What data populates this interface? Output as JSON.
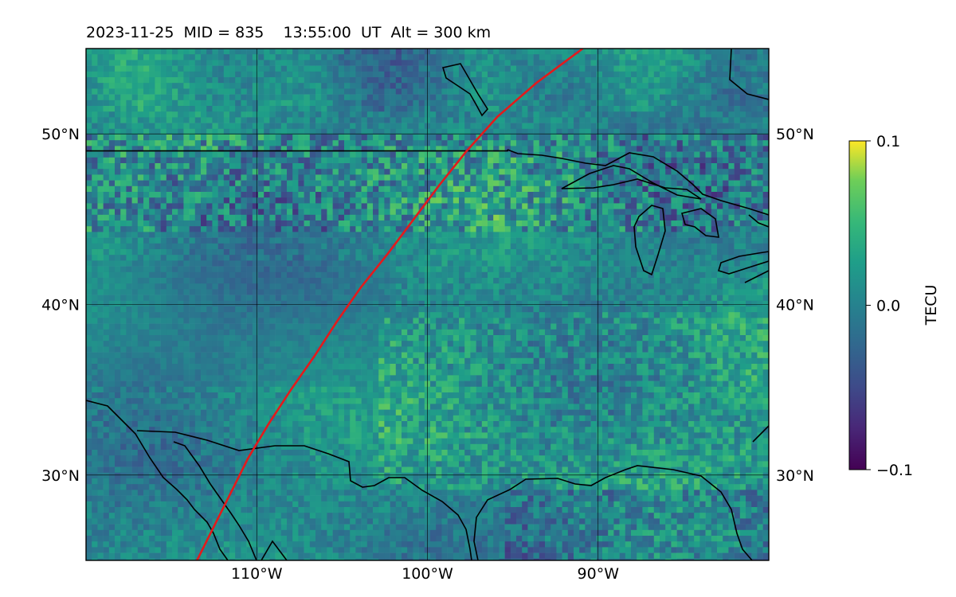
{
  "header": {
    "title": "2023-11-25  MID = 835    13:55:00  UT  Alt = 300 km"
  },
  "map": {
    "lon_range": [
      -120,
      -80
    ],
    "lat_range": [
      25,
      55
    ],
    "lat_ticks": [
      {
        "value": 30,
        "label": "30°N"
      },
      {
        "value": 40,
        "label": "40°N"
      },
      {
        "value": 50,
        "label": "50°N"
      }
    ],
    "lon_ticks": [
      {
        "value": -110,
        "label": "110°W"
      },
      {
        "value": -100,
        "label": "100°W"
      },
      {
        "value": -90,
        "label": "90°W"
      }
    ],
    "terminator_color": "#e31a1c",
    "terminator_points": [
      [
        -113.5,
        25.0
      ],
      [
        -112.5,
        27.0
      ],
      [
        -111.5,
        29.0
      ],
      [
        -110.5,
        31.0
      ],
      [
        -109.3,
        33.0
      ],
      [
        -108.0,
        35.0
      ],
      [
        -106.6,
        37.0
      ],
      [
        -105.3,
        39.0
      ],
      [
        -103.9,
        41.0
      ],
      [
        -102.3,
        43.0
      ],
      [
        -100.8,
        45.0
      ],
      [
        -99.3,
        47.0
      ],
      [
        -97.7,
        49.0
      ],
      [
        -95.9,
        51.0
      ],
      [
        -93.6,
        53.0
      ],
      [
        -90.9,
        55.0
      ]
    ],
    "border_lat": 49.0,
    "colormap": "viridis"
  },
  "colorbar": {
    "label": "TECU",
    "min": -0.1,
    "max": 0.1,
    "ticks": [
      {
        "value": 0.1,
        "label": "0.1"
      },
      {
        "value": 0.0,
        "label": "0.0"
      },
      {
        "value": -0.1,
        "label": "−0.1"
      }
    ]
  }
}
